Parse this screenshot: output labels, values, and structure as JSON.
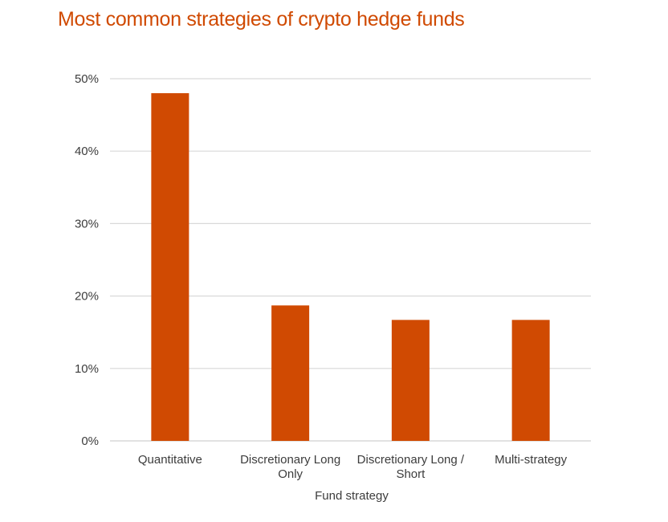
{
  "chart_data": {
    "type": "bar",
    "title": "Most common strategies of crypto hedge funds",
    "categories": [
      [
        "Quantitative"
      ],
      [
        "Discretionary Long",
        "Only"
      ],
      [
        "Discretionary Long /",
        "Short"
      ],
      [
        "Multi-strategy"
      ]
    ],
    "values": [
      48,
      18.7,
      16.7,
      16.7
    ],
    "xlabel": "Fund strategy",
    "ylabel": "",
    "ylim": [
      0,
      50
    ],
    "yticks": [
      "0%",
      "10%",
      "20%",
      "30%",
      "40%",
      "50%"
    ],
    "grid": true,
    "legend": "none",
    "bar_color": "#d04a02",
    "title_color": "#d04a02",
    "gridline_color": "#d9d9d9"
  }
}
